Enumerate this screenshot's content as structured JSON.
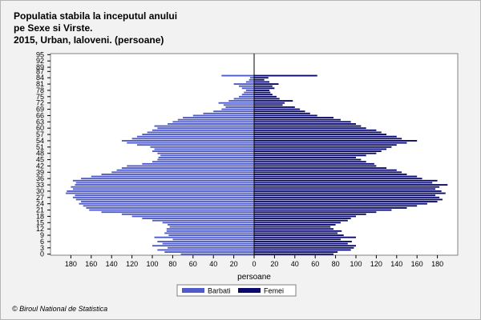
{
  "header": {
    "title_lines": [
      "Populatia stabila la inceputul anului",
      "pe Sexe si Virste.",
      "2015, Urban, Ialoveni. (persoane)"
    ]
  },
  "footer": {
    "source": "© Biroul National de Statistica"
  },
  "colors": {
    "male": "#4f5bc8",
    "female": "#0b0b6e",
    "plot_background": "#ffffff",
    "page_background": "#f2f2f2",
    "grid": "#c0c0c0"
  },
  "chart_data": {
    "type": "population-pyramid (horizontal bar)",
    "title": "Populatia stabila la inceputul anului pe Sexe si Virste. 2015, Urban, Ialoveni. (persoane)",
    "xlabel": "persoane",
    "ylabel": "",
    "xlim": [
      -200,
      200
    ],
    "x_ticks": [
      -180,
      -160,
      -140,
      -120,
      -100,
      -80,
      -60,
      -40,
      -20,
      0,
      20,
      40,
      60,
      80,
      100,
      120,
      140,
      160,
      180
    ],
    "x_tick_labels": [
      "180",
      "160",
      "140",
      "120",
      "100",
      "80",
      "60",
      "40",
      "20",
      "0",
      "20",
      "40",
      "60",
      "80",
      "100",
      "120",
      "140",
      "160",
      "180"
    ],
    "y_tick_labels": [
      "0",
      "3",
      "6",
      "9",
      "12",
      "15",
      "18",
      "21",
      "24",
      "27",
      "30",
      "33",
      "36",
      "39",
      "42",
      "45",
      "48",
      "51",
      "54",
      "57",
      "60",
      "63",
      "66",
      "69",
      "72",
      "75",
      "78",
      "81",
      "84",
      "87",
      "89",
      "92",
      "95"
    ],
    "legend_position": "bottom-center",
    "ages": [
      0,
      1,
      2,
      3,
      4,
      5,
      6,
      7,
      8,
      9,
      10,
      11,
      12,
      13,
      14,
      15,
      16,
      17,
      18,
      19,
      20,
      21,
      22,
      23,
      24,
      25,
      26,
      27,
      28,
      29,
      30,
      31,
      32,
      33,
      34,
      35,
      36,
      37,
      38,
      39,
      40,
      41,
      42,
      43,
      44,
      45,
      46,
      47,
      48,
      49,
      50,
      51,
      52,
      53,
      54,
      55,
      56,
      57,
      58,
      59,
      60,
      61,
      62,
      63,
      64,
      65,
      66,
      67,
      68,
      69,
      70,
      71,
      72,
      73,
      74,
      75,
      76,
      77,
      78,
      79,
      80,
      81,
      82,
      83,
      84,
      85
    ],
    "series": [
      {
        "name": "Barbati",
        "values": [
          72,
          88,
          95,
          85,
          100,
          90,
          95,
          80,
          98,
          84,
          88,
          86,
          86,
          83,
          85,
          90,
          100,
          110,
          120,
          130,
          150,
          162,
          165,
          168,
          172,
          170,
          175,
          178,
          176,
          185,
          184,
          178,
          180,
          176,
          175,
          178,
          170,
          160,
          150,
          140,
          135,
          130,
          125,
          110,
          100,
          95,
          94,
          92,
          95,
          100,
          98,
          102,
          115,
          125,
          130,
          120,
          115,
          110,
          105,
          100,
          95,
          98,
          85,
          80,
          75,
          70,
          60,
          50,
          40,
          32,
          28,
          30,
          35,
          25,
          20,
          15,
          12,
          10,
          8,
          12,
          15,
          20,
          8,
          5,
          4,
          32
        ],
        "stats": "left side, male"
      },
      {
        "name": "Femei",
        "values": [
          78,
          82,
          95,
          98,
          100,
          92,
          96,
          85,
          100,
          88,
          82,
          86,
          78,
          75,
          80,
          85,
          92,
          95,
          100,
          110,
          120,
          135,
          150,
          160,
          170,
          180,
          185,
          182,
          178,
          188,
          184,
          178,
          182,
          190,
          175,
          180,
          165,
          160,
          150,
          145,
          140,
          130,
          120,
          118,
          110,
          105,
          100,
          110,
          120,
          125,
          130,
          135,
          140,
          150,
          160,
          145,
          140,
          130,
          125,
          120,
          110,
          105,
          100,
          95,
          85,
          78,
          62,
          55,
          50,
          45,
          40,
          28,
          30,
          38,
          25,
          22,
          18,
          16,
          15,
          20,
          18,
          24,
          15,
          10,
          14,
          62
        ]
      }
    ]
  }
}
